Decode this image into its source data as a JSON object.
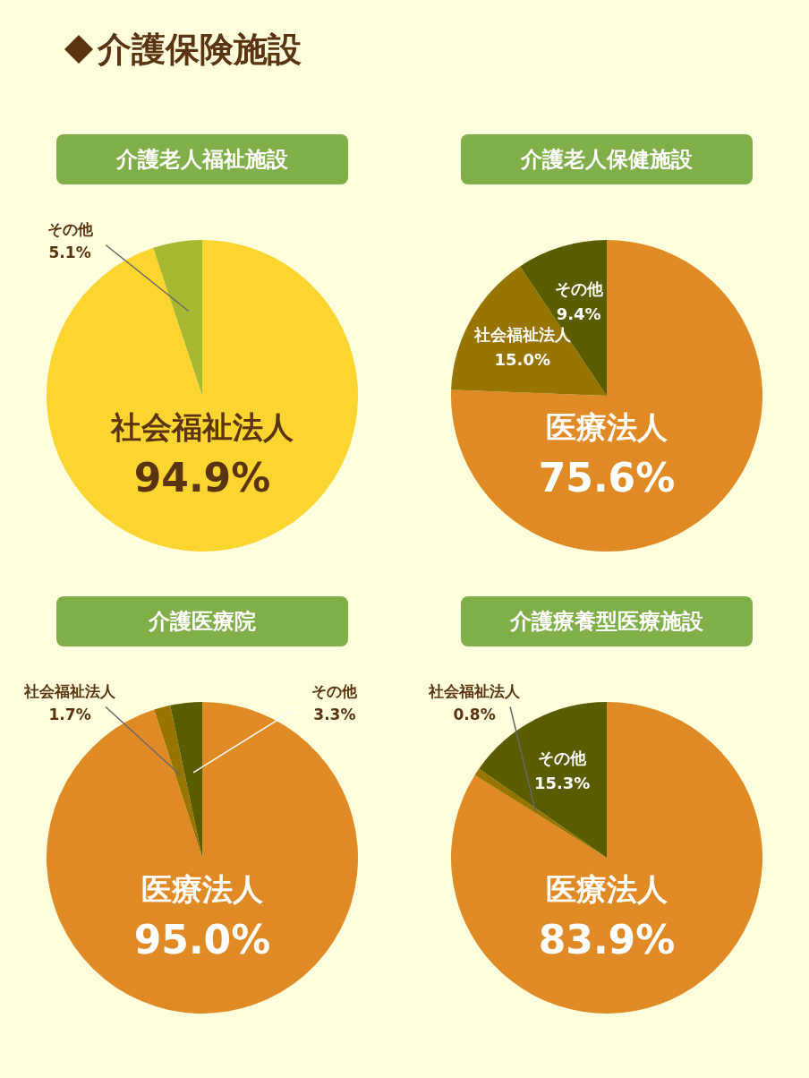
{
  "chart_data": [
    {
      "type": "other",
      "title": "介護保険施設"
    },
    {
      "type": "pie",
      "title": "介護老人福祉施設",
      "categories": [
        "社会福祉法人",
        "その他"
      ],
      "values": [
        94.9,
        5.1
      ],
      "value_labels": [
        "94.9%",
        "5.1%"
      ],
      "colors": [
        "#fdd531",
        "#a8b832"
      ]
    },
    {
      "type": "pie",
      "title": "介護老人保健施設",
      "categories": [
        "医療法人",
        "社会福祉法人",
        "その他"
      ],
      "values": [
        75.6,
        15.0,
        9.4
      ],
      "value_labels": [
        "75.6%",
        "15.0%",
        "9.4%"
      ],
      "colors": [
        "#e08a25",
        "#987400",
        "#5a5c00"
      ]
    },
    {
      "type": "pie",
      "title": "介護医療院",
      "categories": [
        "医療法人",
        "社会福祉法人",
        "その他"
      ],
      "values": [
        95.0,
        1.7,
        3.3
      ],
      "value_labels": [
        "95.0%",
        "1.7%",
        "3.3%"
      ],
      "colors": [
        "#e08a25",
        "#987400",
        "#5a5c00"
      ]
    },
    {
      "type": "pie",
      "title": "介護療養型医療施設",
      "categories": [
        "医療法人",
        "社会福祉法人",
        "その他"
      ],
      "values": [
        83.9,
        0.8,
        15.3
      ],
      "value_labels": [
        "83.9%",
        "0.8%",
        "15.3%"
      ],
      "colors": [
        "#e08a25",
        "#987400",
        "#5a5c00"
      ]
    }
  ]
}
